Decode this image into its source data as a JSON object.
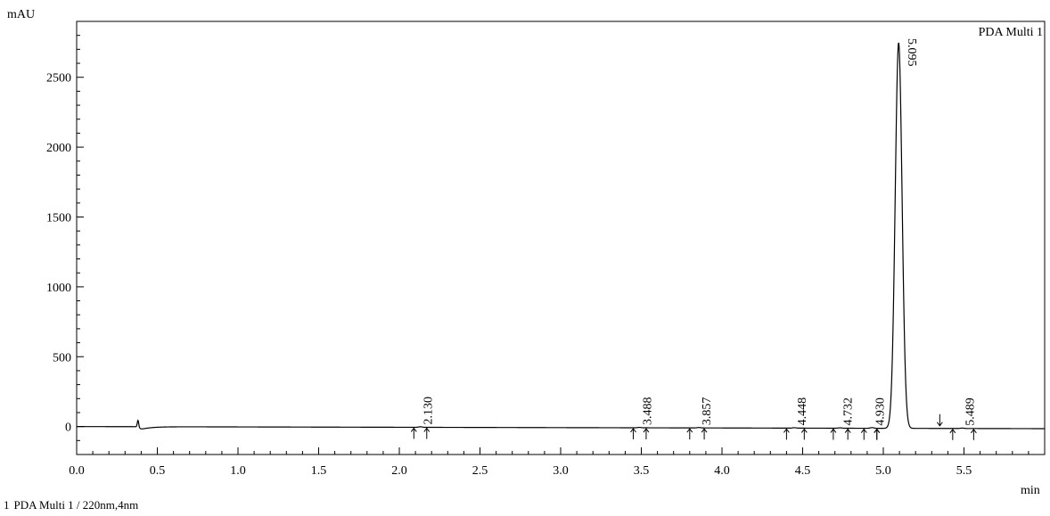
{
  "chart_data": {
    "type": "line",
    "title": "PDA Multi 1",
    "ylabel": "mAU",
    "xlabel": "min",
    "xlim": [
      0.0,
      6.0
    ],
    "ylim": [
      -200,
      2900
    ],
    "x_ticks": [
      0.0,
      0.5,
      1.0,
      1.5,
      2.0,
      2.5,
      3.0,
      3.5,
      4.0,
      4.5,
      5.0,
      5.5
    ],
    "x_tick_labels": [
      "0.0",
      "0.5",
      "1.0",
      "1.5",
      "2.0",
      "2.5",
      "3.0",
      "3.5",
      "4.0",
      "4.5",
      "5.0",
      "5.5"
    ],
    "y_ticks": [
      0,
      500,
      1000,
      1500,
      2000,
      2500
    ],
    "y_tick_labels": [
      "0",
      "500",
      "1000",
      "1500",
      "2000",
      "2500"
    ],
    "grid": false,
    "series": [
      {
        "name": "PDA Multi 1",
        "baseline": {
          "start": [
            0.0,
            0
          ],
          "end": [
            6.0,
            -15
          ]
        },
        "features": [
          {
            "type": "injection_spike",
            "x": 0.38,
            "height": 45,
            "dip": -25
          },
          {
            "type": "peak",
            "x": 5.095,
            "height": 2760,
            "width": 0.03
          }
        ]
      }
    ],
    "peaks": [
      {
        "rt": 2.13,
        "label": "2.130",
        "height": 4,
        "start": 2.09,
        "end": 2.17
      },
      {
        "rt": 3.488,
        "label": "3.488",
        "height": 3,
        "start": 3.45,
        "end": 3.53
      },
      {
        "rt": 3.857,
        "label": "3.857",
        "height": 3,
        "start": 3.8,
        "end": 3.89
      },
      {
        "rt": 4.448,
        "label": "4.448",
        "height": 3,
        "start": 4.4,
        "end": 4.51
      },
      {
        "rt": 4.732,
        "label": "4.732",
        "height": 3,
        "start": 4.69,
        "end": 4.78
      },
      {
        "rt": 4.93,
        "label": "4.930",
        "height": 5,
        "start": 4.88,
        "end": 4.96
      },
      {
        "rt": 5.095,
        "label": "5.095",
        "height": 2760,
        "start": 4.96,
        "end": 5.35
      },
      {
        "rt": 5.489,
        "label": "5.489",
        "height": 3,
        "start": 5.43,
        "end": 5.56
      }
    ]
  },
  "footer": {
    "channel_number": "1",
    "channel_desc": "PDA Multi 1 / 220nm,4nm"
  },
  "colors": {
    "trace": "#000000",
    "axes": "#000000",
    "background": "#ffffff"
  }
}
